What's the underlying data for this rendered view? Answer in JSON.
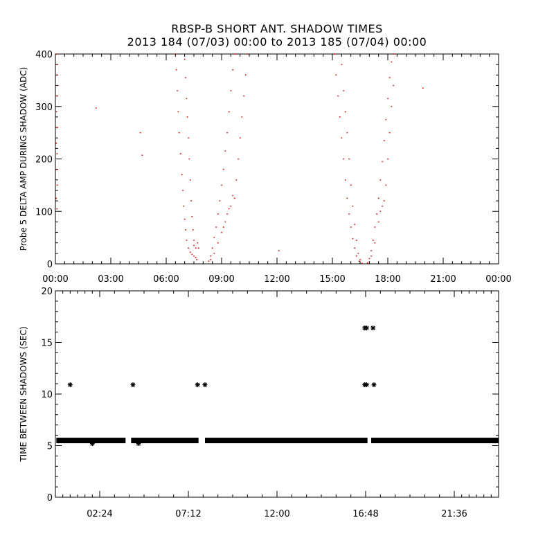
{
  "title_line1": "RBSP-B SHORT ANT. SHADOW TIMES",
  "title_line2": "2013 184 (07/03) 00:00 to 2013 185 (07/04) 00:00",
  "chart_data": [
    {
      "type": "scatter",
      "ylabel": "Probe 5 DELTA AMP DURING SHADOW (ADC)",
      "xlabel": "",
      "xlim": [
        0,
        24
      ],
      "ylim": [
        0,
        400
      ],
      "x_ticks": [
        0,
        3,
        6,
        9,
        12,
        15,
        18,
        21,
        24
      ],
      "x_tick_labels": [
        "00:00",
        "03:00",
        "06:00",
        "09:00",
        "12:00",
        "15:00",
        "18:00",
        "21:00",
        "00:00"
      ],
      "y_ticks": [
        0,
        100,
        200,
        300,
        400
      ],
      "y_tick_labels": [
        "0",
        "100",
        "200",
        "300",
        "400"
      ],
      "color": "#ff0000",
      "series": [
        {
          "points": [
            [
              0.05,
              400
            ],
            [
              0.08,
              360
            ],
            [
              0.1,
              320
            ],
            [
              0.06,
              290
            ],
            [
              0.1,
              260
            ],
            [
              0.05,
              230
            ],
            [
              0.09,
              210
            ],
            [
              0.06,
              180
            ],
            [
              0.1,
              150
            ],
            [
              0.05,
              125
            ],
            [
              0.08,
              105
            ],
            [
              0.12,
              380
            ],
            [
              0.14,
              340
            ],
            [
              2.2,
              297
            ],
            [
              4.6,
              250
            ],
            [
              4.7,
              207
            ],
            [
              12.1,
              25
            ],
            [
              19.9,
              335
            ],
            [
              6.5,
              400
            ],
            [
              6.55,
              370
            ],
            [
              6.6,
              330
            ],
            [
              6.65,
              290
            ],
            [
              6.7,
              250
            ],
            [
              6.78,
              210
            ],
            [
              6.85,
              170
            ],
            [
              6.9,
              140
            ],
            [
              6.95,
              110
            ],
            [
              7.0,
              85
            ],
            [
              7.05,
              65
            ],
            [
              7.1,
              45
            ],
            [
              7.2,
              30
            ],
            [
              7.3,
              22
            ],
            [
              7.4,
              18
            ],
            [
              7.5,
              15
            ],
            [
              7.6,
              12
            ],
            [
              7.65,
              8
            ],
            [
              7.5,
              35
            ],
            [
              7.7,
              40
            ],
            [
              7.75,
              30
            ],
            [
              7.0,
              390
            ],
            [
              7.05,
              355
            ],
            [
              7.1,
              315
            ],
            [
              7.15,
              280
            ],
            [
              7.2,
              240
            ],
            [
              7.25,
              200
            ],
            [
              7.3,
              160
            ],
            [
              7.35,
              120
            ],
            [
              7.4,
              90
            ],
            [
              7.45,
              65
            ],
            [
              7.5,
              45
            ],
            [
              7.6,
              30
            ],
            [
              8.3,
              5
            ],
            [
              8.4,
              15
            ],
            [
              8.5,
              30
            ],
            [
              8.6,
              50
            ],
            [
              8.7,
              70
            ],
            [
              8.8,
              95
            ],
            [
              8.9,
              120
            ],
            [
              9.0,
              150
            ],
            [
              9.1,
              180
            ],
            [
              9.2,
              215
            ],
            [
              9.3,
              250
            ],
            [
              9.4,
              290
            ],
            [
              9.5,
              330
            ],
            [
              9.6,
              370
            ],
            [
              9.7,
              400
            ],
            [
              8.4,
              8
            ],
            [
              8.6,
              20
            ],
            [
              8.8,
              40
            ],
            [
              9.0,
              60
            ],
            [
              9.2,
              80
            ],
            [
              9.4,
              105
            ],
            [
              9.6,
              130
            ],
            [
              9.8,
              160
            ],
            [
              9.9,
              200
            ],
            [
              10.0,
              240
            ],
            [
              10.1,
              280
            ],
            [
              10.2,
              320
            ],
            [
              10.3,
              360
            ],
            [
              10.4,
              400
            ],
            [
              9.1,
              70
            ],
            [
              9.3,
              95
            ],
            [
              9.5,
              110
            ],
            [
              9.7,
              125
            ],
            [
              15.1,
              400
            ],
            [
              15.2,
              360
            ],
            [
              15.3,
              320
            ],
            [
              15.4,
              280
            ],
            [
              15.5,
              240
            ],
            [
              15.6,
              200
            ],
            [
              15.7,
              160
            ],
            [
              15.8,
              125
            ],
            [
              15.9,
              95
            ],
            [
              16.0,
              70
            ],
            [
              16.1,
              48
            ],
            [
              16.2,
              30
            ],
            [
              16.3,
              15
            ],
            [
              16.45,
              5
            ],
            [
              16.6,
              1
            ],
            [
              15.5,
              380
            ],
            [
              15.6,
              330
            ],
            [
              15.7,
              290
            ],
            [
              15.8,
              250
            ],
            [
              15.9,
              200
            ],
            [
              16.0,
              150
            ],
            [
              16.1,
              110
            ],
            [
              16.2,
              75
            ],
            [
              16.3,
              45
            ],
            [
              16.4,
              20
            ],
            [
              16.5,
              8
            ],
            [
              16.9,
              2
            ],
            [
              17.0,
              10
            ],
            [
              17.1,
              25
            ],
            [
              17.2,
              45
            ],
            [
              17.3,
              70
            ],
            [
              17.4,
              95
            ],
            [
              17.5,
              125
            ],
            [
              17.6,
              160
            ],
            [
              17.7,
              195
            ],
            [
              17.8,
              235
            ],
            [
              17.9,
              275
            ],
            [
              18.0,
              315
            ],
            [
              18.1,
              355
            ],
            [
              18.2,
              385
            ],
            [
              18.3,
              400
            ],
            [
              17.1,
              15
            ],
            [
              17.3,
              40
            ],
            [
              17.5,
              80
            ],
            [
              17.7,
              110
            ],
            [
              17.9,
              150
            ],
            [
              18.0,
              200
            ],
            [
              18.1,
              250
            ],
            [
              18.2,
              300
            ],
            [
              18.3,
              340
            ],
            [
              17.6,
              100
            ],
            [
              17.8,
              120
            ]
          ]
        }
      ]
    },
    {
      "type": "scatter",
      "ylabel": "TIME BETWEEN SHADOWS (SEC)",
      "xlabel": "",
      "xlim": [
        0,
        24
      ],
      "ylim": [
        0,
        20
      ],
      "x_ticks": [
        2.4,
        7.2,
        12,
        16.8,
        21.6
      ],
      "x_tick_labels": [
        "02:24",
        "07:12",
        "12:00",
        "16:48",
        "21:36"
      ],
      "y_ticks": [
        0,
        5,
        10,
        15,
        20
      ],
      "y_tick_labels": [
        "0",
        "5",
        "10",
        "15",
        "20"
      ],
      "marker": "*",
      "color": "#000000",
      "baseline": {
        "y": 5.5,
        "x_ranges": [
          [
            0.05,
            3.8
          ],
          [
            4.1,
            7.75
          ],
          [
            8.1,
            16.9
          ],
          [
            17.1,
            24
          ]
        ]
      },
      "series": [
        {
          "points": [
            [
              0.8,
              10.9
            ],
            [
              4.2,
              10.9
            ],
            [
              7.7,
              10.9
            ],
            [
              8.1,
              10.9
            ],
            [
              16.75,
              10.9
            ],
            [
              16.85,
              10.9
            ],
            [
              17.25,
              10.9
            ],
            [
              16.75,
              16.4
            ],
            [
              16.85,
              16.4
            ],
            [
              17.2,
              16.4
            ],
            [
              2.0,
              5.2
            ],
            [
              4.5,
              5.2
            ],
            [
              16.5,
              5.5
            ],
            [
              17.5,
              5.5
            ]
          ]
        }
      ]
    }
  ]
}
